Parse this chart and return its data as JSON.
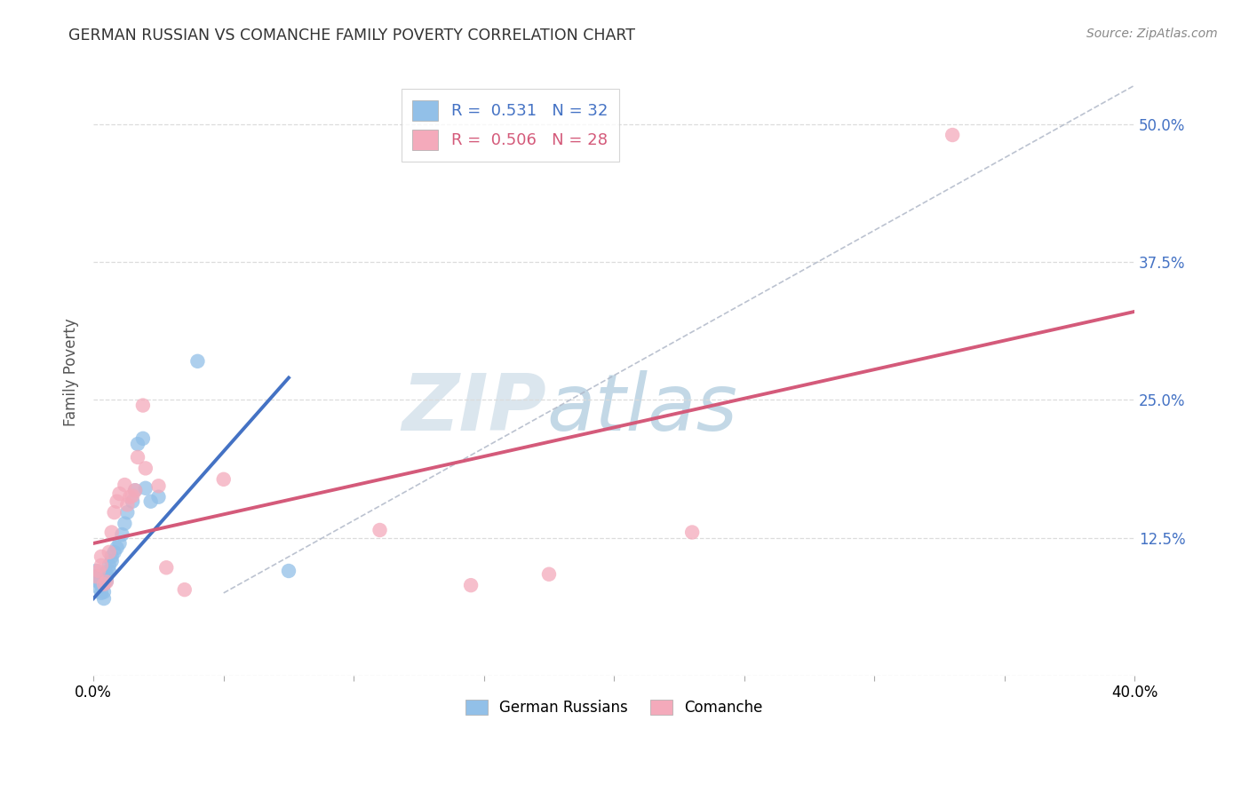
{
  "title": "GERMAN RUSSIAN VS COMANCHE FAMILY POVERTY CORRELATION CHART",
  "source": "Source: ZipAtlas.com",
  "ylabel": "Family Poverty",
  "xlim": [
    0.0,
    0.4
  ],
  "ylim": [
    0.0,
    0.55
  ],
  "xticks": [
    0.0,
    0.05,
    0.1,
    0.15,
    0.2,
    0.25,
    0.3,
    0.35,
    0.4
  ],
  "ytick_positions": [
    0.0,
    0.125,
    0.25,
    0.375,
    0.5
  ],
  "ytick_labels": [
    "",
    "12.5%",
    "25.0%",
    "37.5%",
    "50.0%"
  ],
  "blue_color": "#92C0E8",
  "pink_color": "#F4AABB",
  "blue_line_color": "#4472C4",
  "pink_line_color": "#D45A7A",
  "dashed_line_color": "#B0B8C8",
  "legend_r_blue": "0.531",
  "legend_n_blue": "32",
  "legend_r_pink": "0.506",
  "legend_n_pink": "28",
  "legend_label_blue": "German Russians",
  "legend_label_pink": "Comanche",
  "watermark_zip": "ZIP",
  "watermark_atlas": "atlas",
  "blue_points_x": [
    0.001,
    0.001,
    0.002,
    0.002,
    0.003,
    0.003,
    0.003,
    0.004,
    0.004,
    0.004,
    0.005,
    0.005,
    0.005,
    0.006,
    0.006,
    0.007,
    0.007,
    0.008,
    0.009,
    0.01,
    0.011,
    0.012,
    0.013,
    0.015,
    0.016,
    0.017,
    0.019,
    0.02,
    0.022,
    0.025,
    0.04,
    0.075
  ],
  "blue_points_y": [
    0.09,
    0.095,
    0.08,
    0.085,
    0.075,
    0.082,
    0.088,
    0.07,
    0.076,
    0.083,
    0.086,
    0.09,
    0.093,
    0.095,
    0.1,
    0.104,
    0.108,
    0.112,
    0.116,
    0.12,
    0.128,
    0.138,
    0.148,
    0.158,
    0.168,
    0.21,
    0.215,
    0.17,
    0.158,
    0.162,
    0.285,
    0.095
  ],
  "pink_points_x": [
    0.001,
    0.002,
    0.003,
    0.003,
    0.004,
    0.005,
    0.006,
    0.007,
    0.008,
    0.009,
    0.01,
    0.012,
    0.013,
    0.014,
    0.015,
    0.016,
    0.017,
    0.019,
    0.02,
    0.025,
    0.028,
    0.035,
    0.05,
    0.11,
    0.145,
    0.175,
    0.23,
    0.33
  ],
  "pink_points_y": [
    0.09,
    0.095,
    0.1,
    0.108,
    0.083,
    0.085,
    0.112,
    0.13,
    0.148,
    0.158,
    0.165,
    0.173,
    0.155,
    0.162,
    0.163,
    0.168,
    0.198,
    0.245,
    0.188,
    0.172,
    0.098,
    0.078,
    0.178,
    0.132,
    0.082,
    0.092,
    0.13,
    0.49
  ],
  "blue_trendline_x": [
    0.0,
    0.075
  ],
  "blue_trendline_y": [
    0.07,
    0.27
  ],
  "pink_trendline_x": [
    0.0,
    0.4
  ],
  "pink_trendline_y": [
    0.12,
    0.33
  ],
  "dashed_line_x": [
    0.05,
    0.4
  ],
  "dashed_line_y": [
    0.075,
    0.535
  ],
  "background_color": "#FFFFFF",
  "grid_color": "#DCDCDC"
}
